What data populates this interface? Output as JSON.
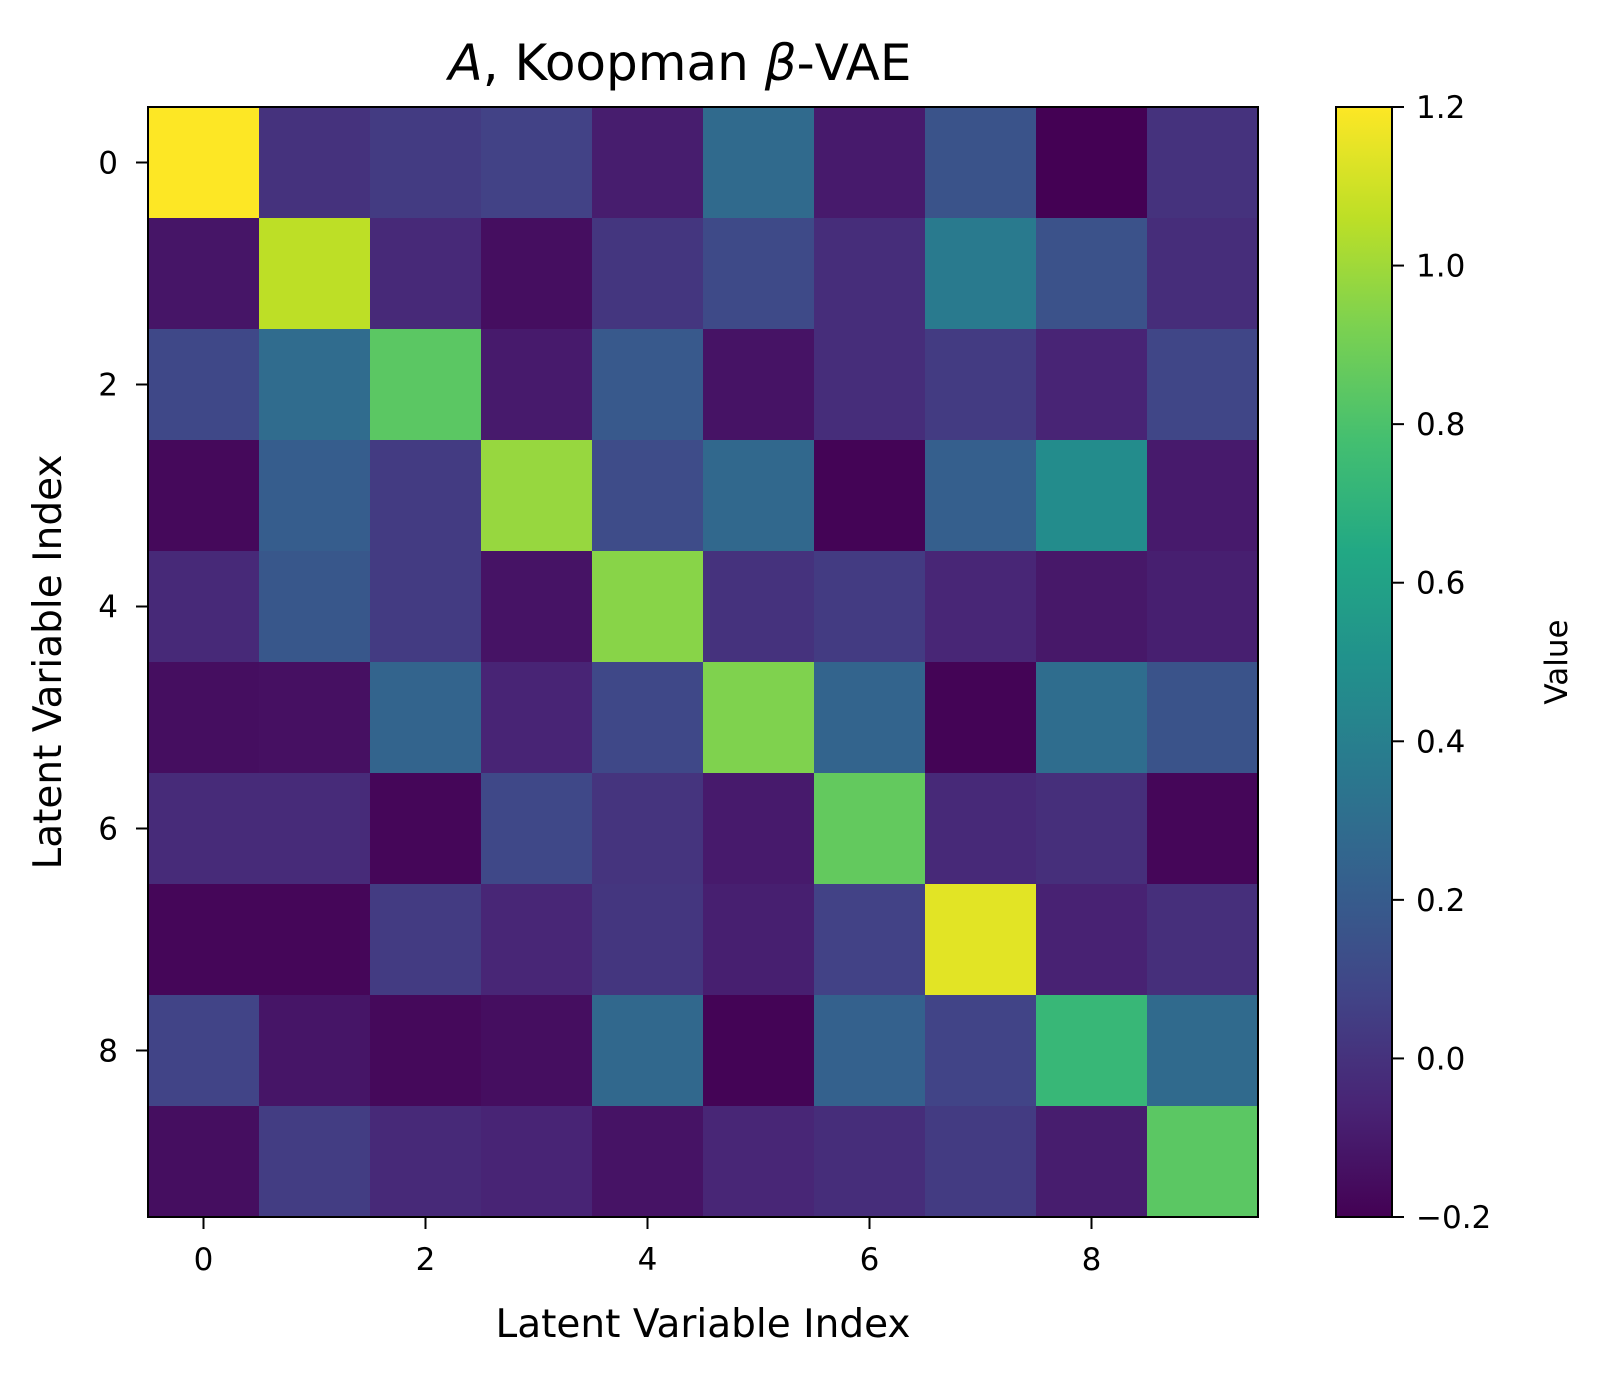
{
  "chart_data": {
    "type": "heatmap",
    "title_parts": [
      {
        "text": "A",
        "italic": true
      },
      {
        "text": ", Koopman ",
        "italic": false
      },
      {
        "text": "β",
        "italic": true
      },
      {
        "text": "-VAE",
        "italic": false
      }
    ],
    "xlabel": "Latent Variable Index",
    "ylabel": "Latent Variable Index",
    "x_ticks": [
      0,
      2,
      4,
      6,
      8
    ],
    "y_ticks": [
      0,
      2,
      4,
      6,
      8
    ],
    "x_tick_labels": [
      "0",
      "2",
      "4",
      "6",
      "8"
    ],
    "y_tick_labels": [
      "0",
      "2",
      "4",
      "6",
      "8"
    ],
    "rows": 10,
    "cols": 10,
    "colormap": "viridis",
    "vmin": -0.2,
    "vmax": 1.2,
    "colorbar": {
      "label": "Value",
      "ticks": [
        -0.2,
        0.0,
        0.2,
        0.4,
        0.6,
        0.8,
        1.0,
        1.2
      ],
      "tick_labels": [
        "−0.2",
        "0.0",
        "0.2",
        "0.4",
        "0.6",
        "0.8",
        "1.0",
        "1.2"
      ]
    },
    "values": [
      [
        1.2,
        0.0,
        0.04,
        0.07,
        -0.09,
        0.28,
        -0.1,
        0.16,
        -0.2,
        0.0
      ],
      [
        -0.12,
        1.06,
        -0.04,
        -0.15,
        0.02,
        0.11,
        -0.02,
        0.37,
        0.15,
        -0.02
      ],
      [
        0.1,
        0.29,
        0.84,
        -0.1,
        0.19,
        -0.13,
        -0.02,
        0.04,
        -0.06,
        0.09
      ],
      [
        -0.17,
        0.21,
        0.04,
        0.98,
        0.12,
        0.27,
        -0.19,
        0.22,
        0.47,
        -0.1
      ],
      [
        -0.04,
        0.18,
        0.04,
        -0.13,
        0.95,
        0.0,
        0.04,
        -0.05,
        -0.11,
        -0.08
      ],
      [
        -0.15,
        -0.14,
        0.25,
        -0.06,
        0.1,
        0.93,
        0.25,
        -0.19,
        0.3,
        0.16
      ],
      [
        -0.03,
        -0.03,
        -0.18,
        0.1,
        0.01,
        -0.1,
        0.86,
        -0.04,
        -0.01,
        -0.18
      ],
      [
        -0.18,
        -0.18,
        0.04,
        -0.05,
        0.02,
        -0.08,
        0.07,
        1.14,
        -0.07,
        -0.01
      ],
      [
        0.08,
        -0.12,
        -0.17,
        -0.15,
        0.27,
        -0.19,
        0.23,
        0.08,
        0.73,
        0.28
      ],
      [
        -0.15,
        0.05,
        -0.04,
        -0.06,
        -0.13,
        -0.05,
        -0.02,
        0.04,
        -0.09,
        0.84
      ]
    ]
  }
}
